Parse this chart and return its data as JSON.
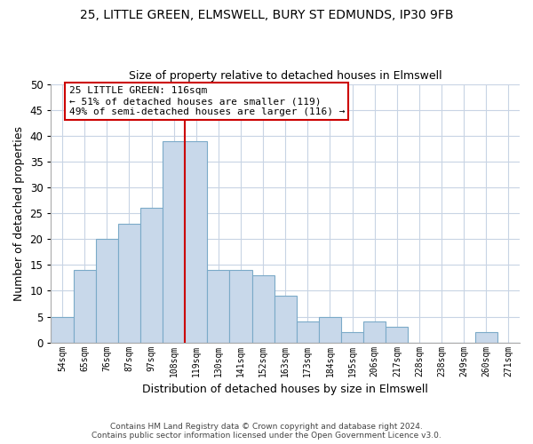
{
  "title_line1": "25, LITTLE GREEN, ELMSWELL, BURY ST EDMUNDS, IP30 9FB",
  "title_line2": "Size of property relative to detached houses in Elmswell",
  "xlabel": "Distribution of detached houses by size in Elmswell",
  "ylabel": "Number of detached properties",
  "bar_labels": [
    "54sqm",
    "65sqm",
    "76sqm",
    "87sqm",
    "97sqm",
    "108sqm",
    "119sqm",
    "130sqm",
    "141sqm",
    "152sqm",
    "163sqm",
    "173sqm",
    "184sqm",
    "195sqm",
    "206sqm",
    "217sqm",
    "228sqm",
    "238sqm",
    "249sqm",
    "260sqm",
    "271sqm"
  ],
  "bar_heights": [
    5,
    14,
    20,
    23,
    26,
    39,
    39,
    14,
    14,
    13,
    9,
    4,
    5,
    2,
    4,
    3,
    0,
    0,
    0,
    2,
    0
  ],
  "bar_color": "#c8d8ea",
  "bar_edge_color": "#7baac8",
  "vline_x_index": 6,
  "vline_color": "#cc0000",
  "annotation_title": "25 LITTLE GREEN: 116sqm",
  "annotation_line1": "← 51% of detached houses are smaller (119)",
  "annotation_line2": "49% of semi-detached houses are larger (116) →",
  "annotation_box_color": "#ffffff",
  "annotation_box_edge": "#cc0000",
  "ylim": [
    0,
    50
  ],
  "yticks": [
    0,
    5,
    10,
    15,
    20,
    25,
    30,
    35,
    40,
    45,
    50
  ],
  "footer_line1": "Contains HM Land Registry data © Crown copyright and database right 2024.",
  "footer_line2": "Contains public sector information licensed under the Open Government Licence v3.0.",
  "background_color": "#ffffff",
  "grid_color": "#c8d4e4"
}
